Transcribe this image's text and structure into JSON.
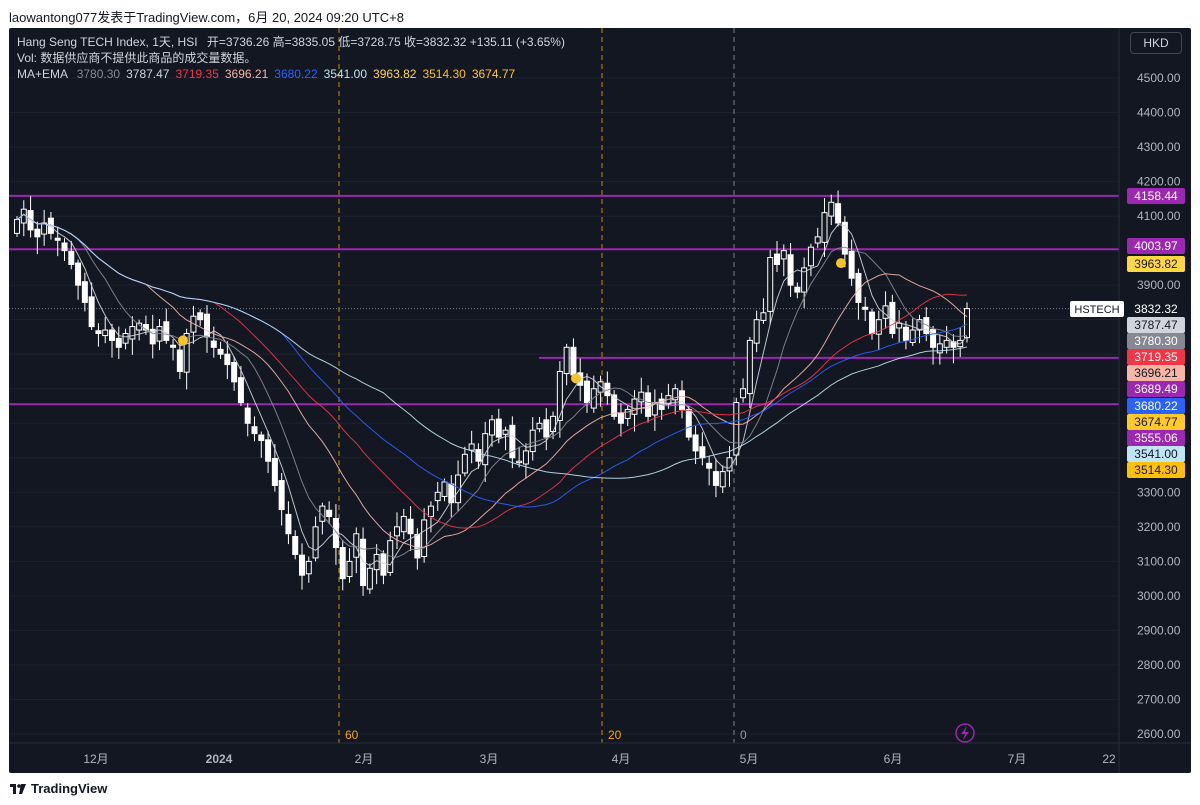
{
  "top": {
    "share_text": "laowantong077发表于TradingView.com，6月 20, 2024 09:20 UTC+8"
  },
  "legend": {
    "title": "Hang Seng TECH Index, 1天, HSI",
    "ohlc": "开=3736.26  高=3835.05  低=3728.75  收=3832.32  +135.11 (+3.65%)",
    "vol": "Vol: 数据供应商不提供此商品的成交量数据。",
    "ma_label": "MA+EMA",
    "ma_values": [
      {
        "value": "3780.30",
        "color": "#868993"
      },
      {
        "value": "3787.47",
        "color": "#d1d4dc"
      },
      {
        "value": "3719.35",
        "color": "#f23645"
      },
      {
        "value": "3696.21",
        "color": "#f7b5a6"
      },
      {
        "value": "3680.22",
        "color": "#2962ff"
      },
      {
        "value": "3541.00",
        "color": "#bfe4f2"
      },
      {
        "value": "3963.82",
        "color": "#ffd740"
      },
      {
        "value": "3514.30",
        "color": "#ffc107"
      },
      {
        "value": "3674.77",
        "color": "#ffca28"
      }
    ]
  },
  "currency_button": "HKD",
  "symbol_tag": "HSTECH",
  "time_axis": [
    "12月",
    "2024",
    "2月",
    "3月",
    "4月",
    "5月",
    "6月",
    "7月",
    "22"
  ],
  "bar_count_markers": [
    "60",
    "20",
    "0"
  ],
  "price_badges": [
    {
      "value": "4158.44",
      "bg": "#9c27b0",
      "fg": "#ffffff"
    },
    {
      "value": "4003.97",
      "bg": "#9c27b0",
      "fg": "#ffffff"
    },
    {
      "value": "3963.82",
      "bg": "#ffd740",
      "fg": "#131722"
    },
    {
      "value": "3832.32",
      "bg": "#131722",
      "fg": "#ffffff"
    },
    {
      "value": "3787.47",
      "bg": "#d1d4dc",
      "fg": "#131722"
    },
    {
      "value": "3780.30",
      "bg": "#868993",
      "fg": "#ffffff"
    },
    {
      "value": "3719.35",
      "bg": "#f23645",
      "fg": "#ffffff"
    },
    {
      "value": "3696.21",
      "bg": "#f7b5a6",
      "fg": "#131722"
    },
    {
      "value": "3689.49",
      "bg": "#9c27b0",
      "fg": "#ffffff"
    },
    {
      "value": "3680.22",
      "bg": "#2962ff",
      "fg": "#ffffff"
    },
    {
      "value": "3674.77",
      "bg": "#ffca28",
      "fg": "#131722"
    },
    {
      "value": "3555.06",
      "bg": "#9c27b0",
      "fg": "#ffffff"
    },
    {
      "value": "3541.00",
      "bg": "#bfe4f2",
      "fg": "#131722"
    },
    {
      "value": "3514.30",
      "bg": "#ffc107",
      "fg": "#131722"
    }
  ],
  "horizontal_levels": [
    4158.44,
    4003.97,
    3689.49,
    3555.06
  ],
  "logo_text": "TradingView",
  "chart_data": {
    "type": "candlestick",
    "y_axis": {
      "ticks": [
        4500,
        4400,
        4300,
        4200,
        4100,
        3900,
        3800,
        3700,
        3600,
        3500,
        3400,
        3300,
        3200,
        3100,
        3000,
        2900,
        2800,
        2700,
        2600
      ],
      "labels": [
        "4500.00",
        "4400.00",
        "4300.00",
        "4200.00",
        "4100.00",
        "3900.00",
        "3800.00",
        "3700.00",
        "3600.00",
        "3500.00",
        "3400.00",
        "3300.00",
        "3200.00",
        "3100.00",
        "3000.00",
        "2900.00",
        "2800.00",
        "2700.00",
        "2600.00"
      ]
    },
    "colors": {
      "up": "#ffffff",
      "down": "#ffffff",
      "level": "#9c27b0",
      "grid": "#1e222d"
    },
    "closes": [
      4090,
      4120,
      4060,
      4040,
      4080,
      4050,
      4030,
      4000,
      3960,
      3900,
      3850,
      3780,
      3760,
      3770,
      3740,
      3720,
      3760,
      3780,
      3790,
      3770,
      3730,
      3780,
      3740,
      3720,
      3650,
      3760,
      3810,
      3800,
      3750,
      3720,
      3700,
      3670,
      3620,
      3560,
      3500,
      3470,
      3450,
      3390,
      3320,
      3250,
      3180,
      3120,
      3060,
      3100,
      3200,
      3260,
      3230,
      3140,
      3050,
      3100,
      3180,
      3030,
      3080,
      3120,
      3060,
      3160,
      3200,
      3230,
      3180,
      3110,
      3220,
      3260,
      3300,
      3330,
      3270,
      3350,
      3410,
      3440,
      3390,
      3470,
      3510,
      3460,
      3480,
      3400,
      3390,
      3420,
      3480,
      3500,
      3460,
      3520,
      3650,
      3720,
      3640,
      3610,
      3560,
      3600,
      3620,
      3580,
      3520,
      3500,
      3540,
      3570,
      3590,
      3520,
      3560,
      3540,
      3580,
      3600,
      3540,
      3460,
      3420,
      3400,
      3370,
      3320,
      3360,
      3400,
      3560,
      3600,
      3740,
      3800,
      3820,
      3980,
      3960,
      4000,
      3900,
      3880,
      3950,
      4010,
      4040,
      4110,
      4140,
      4080,
      3990,
      3920,
      3850,
      3830,
      3760,
      3800,
      3840,
      3760,
      3790,
      3740,
      3770,
      3800,
      3760,
      3720,
      3730,
      3740,
      3720,
      3740,
      3832
    ]
  }
}
